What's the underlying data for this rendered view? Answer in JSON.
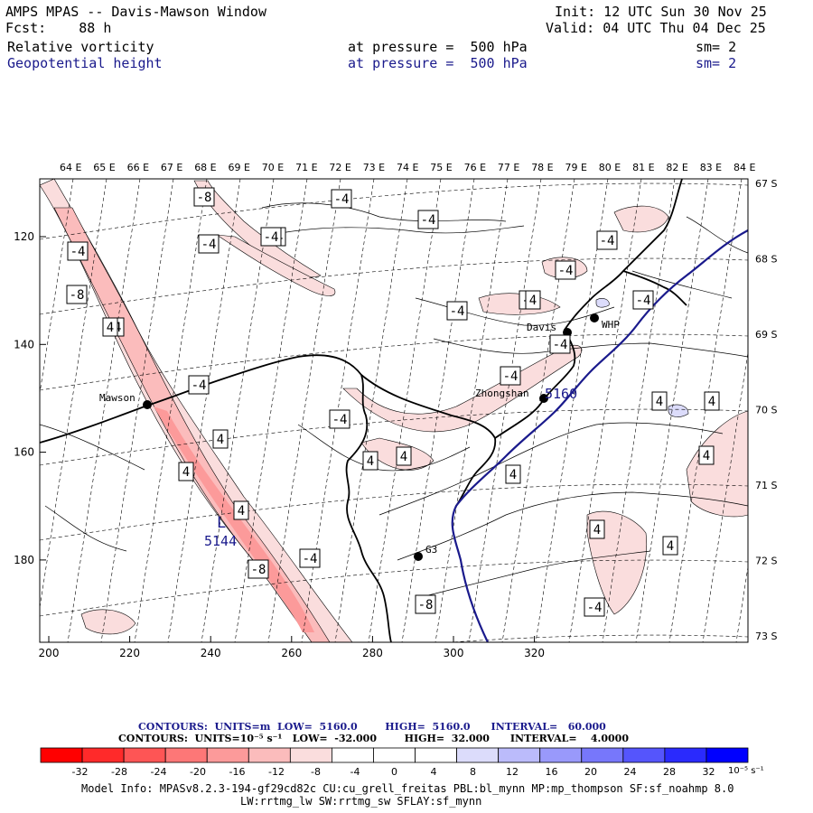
{
  "header": {
    "title": "AMPS MPAS -- Davis-Mawson Window",
    "init": "Init: 12 UTC Sun 30 Nov 25",
    "fcst": "Fcst:    88 h",
    "valid": "Valid: 04 UTC Thu 04 Dec 25",
    "field1": {
      "name": "Relative vorticity",
      "level": "at pressure =  500 hPa",
      "sm": "sm= 2"
    },
    "field2": {
      "name": "Geopotential height",
      "level": "at pressure =  500 hPa",
      "sm": "sm= 2"
    }
  },
  "map": {
    "top_lon_labels": [
      "64 E",
      "65 E",
      "66 E",
      "67 E",
      "68 E",
      "69 E",
      "70 E",
      "71 E",
      "72 E",
      "73 E",
      "74 E",
      "75 E",
      "76 E",
      "77 E",
      "78 E",
      "79 E",
      "80 E",
      "81 E",
      "82 E",
      "83 E",
      "84 E"
    ],
    "right_lat_labels": [
      "67 S",
      "68 S",
      "69 S",
      "70 S",
      "71 S",
      "72 S",
      "73 S"
    ],
    "bottom_x_labels": [
      "200",
      "220",
      "240",
      "260",
      "280",
      "300",
      "320"
    ],
    "left_y_labels": [
      "120",
      "140",
      "160",
      "180"
    ],
    "stations": [
      {
        "name": "Mawson"
      },
      {
        "name": "Davis"
      },
      {
        "name": "WHP"
      },
      {
        "name": "Zhongshan"
      },
      {
        "name": "G3"
      }
    ],
    "low_label": "L",
    "low_value": "5144",
    "height_label": "5160",
    "vort_labels": [
      "-8",
      "-4",
      "-4",
      "-4",
      "-4",
      "-8",
      "-4",
      "-4",
      "-4",
      "-4",
      "-4",
      "-4",
      "-4",
      "-4",
      "-4",
      "-4",
      "-4",
      "4",
      "4",
      "4",
      "4",
      "4",
      "4",
      "4",
      "4",
      "4",
      "4",
      "4",
      "-8",
      "-4",
      "-8",
      "-4",
      "4",
      "4",
      "-4"
    ]
  },
  "contours": {
    "line1": "CONTOURS:  UNITS=m  LOW=  5160.0        HIGH=  5160.0      INTERVAL=   60.000",
    "line2": "CONTOURS:  UNITS=10⁻⁵ s⁻¹   LOW=  -32.000        HIGH=  32.000      INTERVAL=    4.0000"
  },
  "colorbar": {
    "labels": [
      "-32",
      "-28",
      "-24",
      "-20",
      "-16",
      "-12",
      "-8",
      "-4",
      "0",
      "4",
      "8",
      "12",
      "16",
      "20",
      "24",
      "28",
      "32"
    ],
    "unit": "10⁻⁵ s⁻¹",
    "colors": [
      "#ff0000",
      "#ff2a2a",
      "#fe5555",
      "#fd7777",
      "#fc9a9a",
      "#fbbcbc",
      "#fadddd",
      "#ffffff",
      "#ffffff",
      "#ffffff",
      "#dcdcfb",
      "#bbbbfb",
      "#9999fb",
      "#7777fb",
      "#5555fc",
      "#2a2afd",
      "#0000ff"
    ]
  },
  "info": {
    "line1": "Model Info: MPASv8.2.3-194-gf29cd82c CU:cu_grell_freitas PBL:bl_mynn MP:mp_thompson SF:sf_noahmp 8.0",
    "line2": "LW:rrtmg_lw SW:rrtmg_sw SFLAY:sf_mynn"
  }
}
